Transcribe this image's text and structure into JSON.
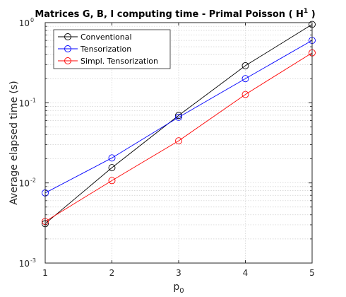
{
  "chart_data": {
    "type": "line",
    "title": "Matrices G, B, I computing time - Primal Poisson ( H",
    "title_superscript": "1",
    "title_suffix": " )",
    "xlabel": "p",
    "xlabel_subscript": "0",
    "ylabel": "Average elapsed time (s)",
    "x": [
      1,
      2,
      3,
      4,
      5
    ],
    "xlim": [
      1,
      5
    ],
    "ylim": [
      0.001,
      1
    ],
    "yscale": "log",
    "x_ticks": [
      "1",
      "2",
      "3",
      "4",
      "5"
    ],
    "y_ticks": [
      {
        "value": 0.001,
        "base": "10",
        "exp": "-3"
      },
      {
        "value": 0.01,
        "base": "10",
        "exp": "-2"
      },
      {
        "value": 0.1,
        "base": "10",
        "exp": "-1"
      },
      {
        "value": 1,
        "base": "10",
        "exp": "0"
      }
    ],
    "grid": true,
    "legend_position": "top-left",
    "marker": "circle",
    "series": [
      {
        "name": "Conventional",
        "color": "#000000",
        "values": [
          0.0031,
          0.0155,
          0.0695,
          0.29,
          0.95
        ]
      },
      {
        "name": "Tensorization",
        "color": "#0000ff",
        "values": [
          0.0075,
          0.0205,
          0.066,
          0.2,
          0.6
        ]
      },
      {
        "name": "Simpl. Tensorization",
        "color": "#ff0000",
        "values": [
          0.0033,
          0.0107,
          0.0335,
          0.127,
          0.42
        ]
      }
    ]
  }
}
